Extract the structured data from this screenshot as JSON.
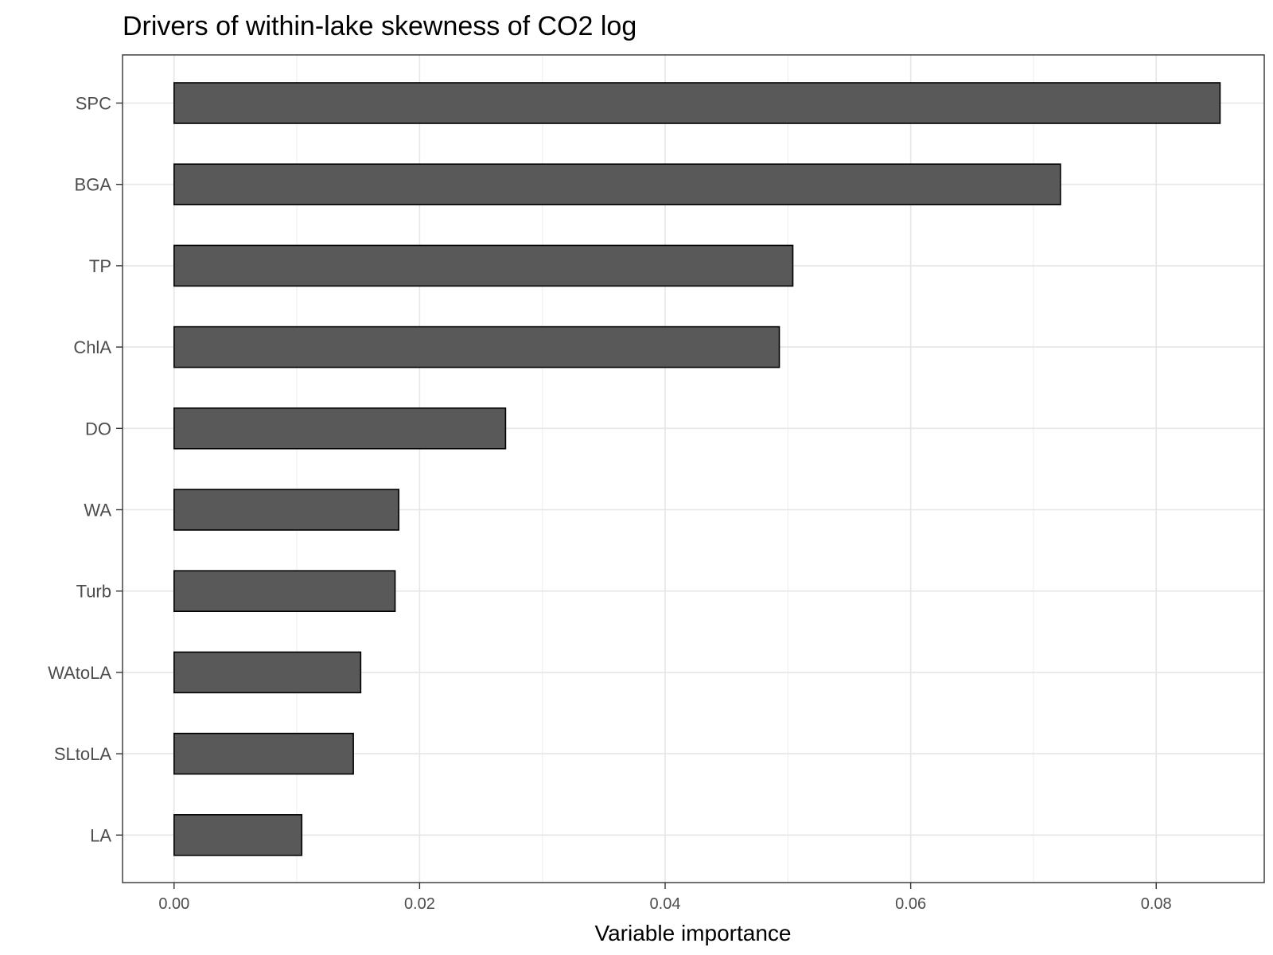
{
  "chart_data": {
    "type": "bar",
    "orientation": "horizontal",
    "title": "Drivers of within-lake skewness of CO2 log",
    "xlabel": "Variable importance",
    "ylabel": "",
    "categories": [
      "SPC",
      "BGA",
      "TP",
      "ChlA",
      "DO",
      "WA",
      "Turb",
      "WAtoLA",
      "SLtoLA",
      "LA"
    ],
    "values": [
      0.0852,
      0.0722,
      0.0504,
      0.0493,
      0.027,
      0.0183,
      0.018,
      0.0152,
      0.0146,
      0.0104
    ],
    "xlim": [
      -0.0042,
      0.0888
    ],
    "xticks": [
      0.0,
      0.02,
      0.04,
      0.06,
      0.08
    ],
    "xtick_labels": [
      "0.00",
      "0.02",
      "0.04",
      "0.06",
      "0.08"
    ],
    "grid": true,
    "bar_color": "#595959",
    "bar_edge_color": "#000000"
  }
}
